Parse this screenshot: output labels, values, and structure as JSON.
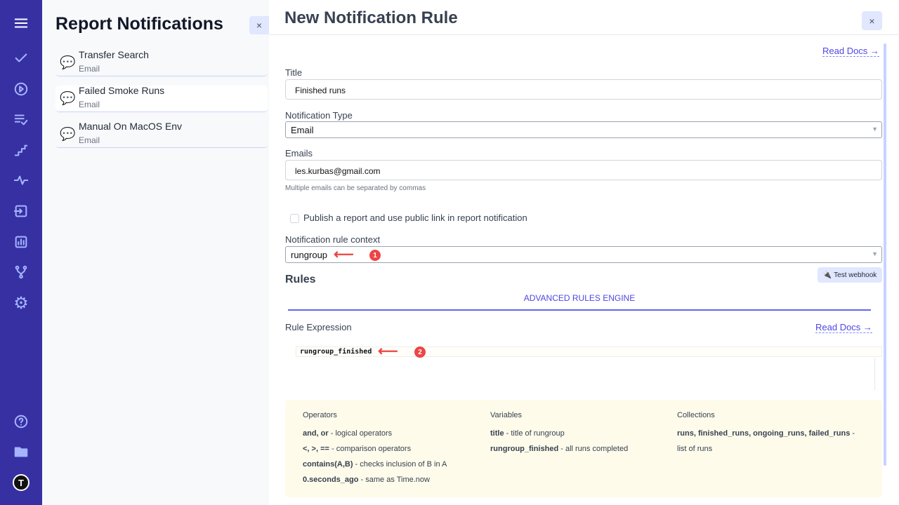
{
  "rail": {
    "items": [
      "menu-icon",
      "check-icon",
      "play-icon",
      "list-check-icon",
      "stairs-icon",
      "pulse-icon",
      "import-icon",
      "chart-icon",
      "branch-icon",
      "gear-icon"
    ],
    "bottom": [
      "help-icon",
      "folder-icon",
      "avatar"
    ],
    "color": "#3730a3"
  },
  "list": {
    "title": "Report Notifications",
    "close": "×",
    "items": [
      {
        "title": "Transfer Search",
        "sub": "Email"
      },
      {
        "title": "Failed Smoke Runs",
        "sub": "Email"
      },
      {
        "title": "Manual On MacOS Env",
        "sub": "Email"
      }
    ]
  },
  "main": {
    "title": "New Notification Rule",
    "close": "×",
    "read_docs": "Read Docs →",
    "title_label": "Title",
    "title_value": "Finished runs",
    "type_label": "Notification Type",
    "type_value": "Email",
    "emails_label": "Emails",
    "emails_value": "les.kurbas@gmail.com",
    "emails_hint": "Multiple emails can be separated by commas",
    "publish_label": "Publish a report and use public link in report notification",
    "context_label": "Notification rule context",
    "context_value": "rungroup",
    "rules_heading": "Rules",
    "test_webhook": "Test webhook",
    "tab": "ADVANCED RULES ENGINE",
    "expr_label": "Rule Expression",
    "expr_docs": "Read Docs →",
    "expr_value": "rungroup_finished",
    "annotations": [
      "1",
      "2"
    ]
  },
  "help": {
    "operators": {
      "heading": "Operators",
      "rows": [
        {
          "b": "and, or",
          "t": " - logical operators"
        },
        {
          "b": "<, >, ==",
          "t": " - comparison operators"
        },
        {
          "b": "contains(A,B)",
          "t": " - checks inclusion of B in A"
        },
        {
          "b": "0.seconds_ago",
          "t": " - same as Time.now"
        }
      ]
    },
    "variables": {
      "heading": "Variables",
      "rows": [
        {
          "b": "title",
          "t": " - title of rungroup"
        },
        {
          "b": "rungroup_finished",
          "t": " - all runs completed"
        }
      ]
    },
    "collections": {
      "heading": "Collections",
      "b": "runs, finished_runs, ongoing_runs, failed_runs",
      "t": " -",
      "t2": "list of runs"
    }
  }
}
